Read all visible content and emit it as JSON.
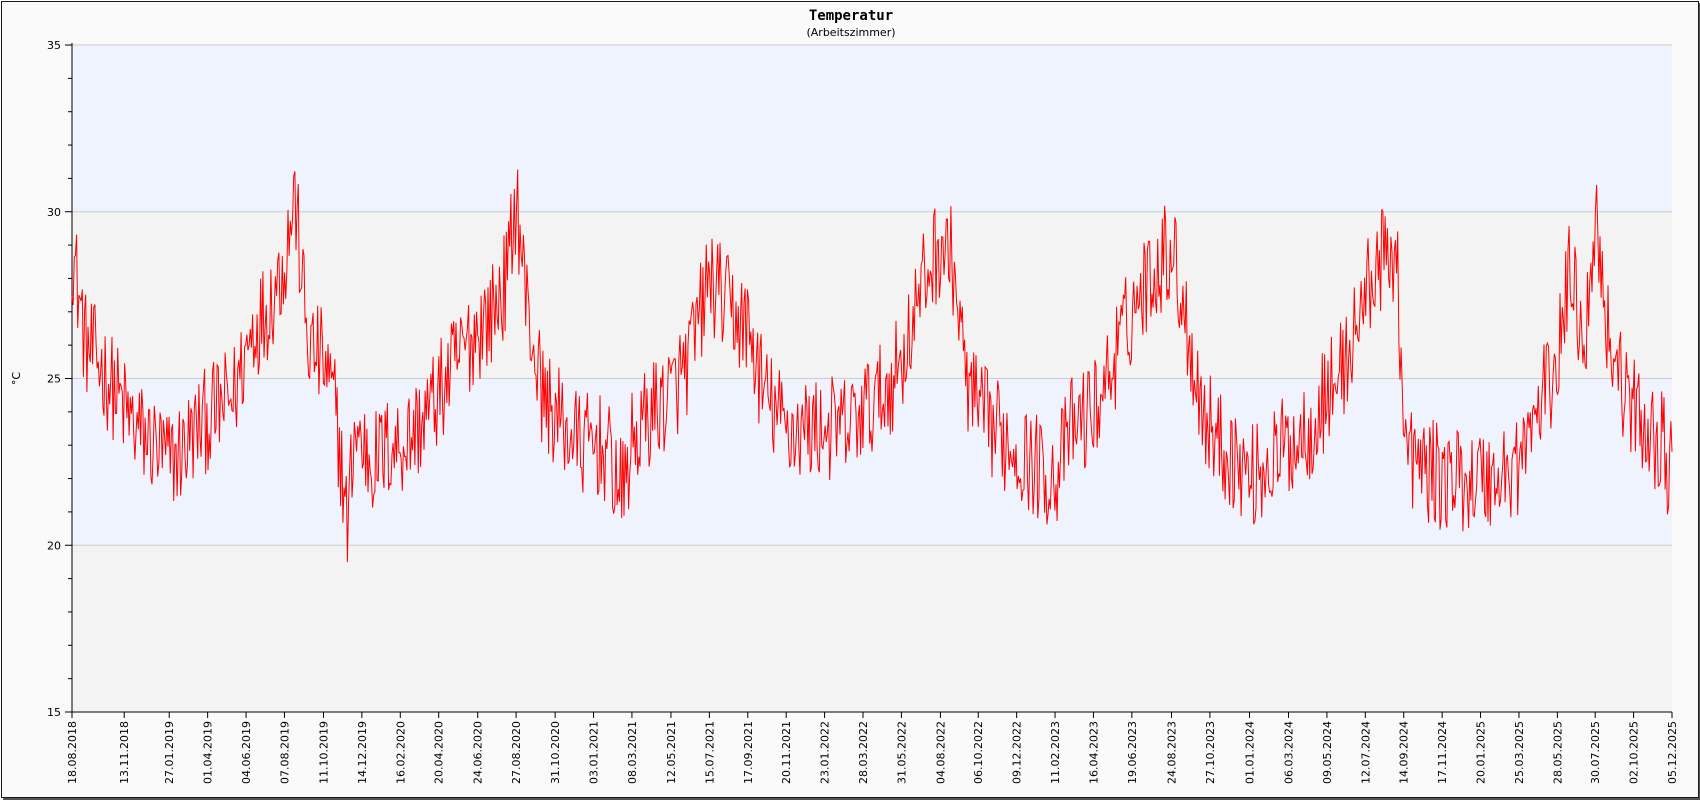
{
  "chart_data": {
    "type": "line",
    "title": "Temperatur",
    "subtitle": "(Arbeitszimmer)",
    "xlabel": "",
    "ylabel": "°C",
    "ylim": [
      15,
      35
    ],
    "y_ticks": [
      15,
      20,
      25,
      30,
      35
    ],
    "x_range": [
      "18.08.2018",
      "05.12.2025"
    ],
    "x_tick_labels": [
      "18.08.2018",
      "13.11.2018",
      "27.01.2019",
      "01.04.2019",
      "04.06.2019",
      "07.08.2019",
      "11.10.2019",
      "14.12.2019",
      "16.02.2020",
      "20.04.2020",
      "24.06.2020",
      "27.08.2020",
      "31.10.2020",
      "03.01.2021",
      "08.03.2021",
      "12.05.2021",
      "15.07.2021",
      "17.09.2021",
      "20.11.2021",
      "23.01.2022",
      "28.03.2022",
      "31.05.2022",
      "04.08.2022",
      "06.10.2022",
      "09.12.2022",
      "11.02.2023",
      "16.04.2023",
      "19.06.2023",
      "24.08.2023",
      "27.10.2023",
      "01.01.2024",
      "06.03.2024",
      "09.05.2024",
      "12.07.2024",
      "14.09.2024",
      "17.11.2024",
      "20.01.2025",
      "25.03.2025",
      "28.05.2025",
      "30.07.2025",
      "02.10.2025",
      "05.12.2025"
    ],
    "grid": true,
    "background_bands": [
      {
        "from": 30,
        "to": 35,
        "color": "#eff3fe"
      },
      {
        "from": 25,
        "to": 30,
        "color": "#f3f3f3"
      },
      {
        "from": 20,
        "to": 25,
        "color": "#eff3fe"
      },
      {
        "from": 15,
        "to": 20,
        "color": "#f3f3f3"
      }
    ],
    "series": [
      {
        "color": "#ff0000",
        "x": [
          "18.08.2018",
          "10.09.2018",
          "01.10.2018",
          "01.11.2018",
          "01.12.2018",
          "01.01.2019",
          "27.01.2019",
          "15.02.2019",
          "15.03.2019",
          "15.04.2019",
          "15.05.2019",
          "15.06.2019",
          "07.07.2019",
          "07.08.2019",
          "24.08.2019",
          "15.09.2019",
          "11.10.2019",
          "01.11.2019",
          "20.11.2019",
          "01.12.2019",
          "14.12.2019",
          "01.01.2020",
          "01.02.2020",
          "16.02.2020",
          "15.03.2020",
          "20.04.2020",
          "20.05.2020",
          "24.06.2020",
          "20.07.2020",
          "12.08.2020",
          "27.08.2020",
          "15.09.2020",
          "10.10.2020",
          "15.11.2020",
          "15.12.2020",
          "15.01.2021",
          "01.02.2021",
          "20.02.2021",
          "08.03.2021",
          "10.04.2021",
          "12.05.2021",
          "10.06.2021",
          "01.07.2021",
          "15.07.2021",
          "20.08.2021",
          "17.09.2021",
          "15.10.2021",
          "20.11.2021",
          "15.12.2021",
          "23.01.2022",
          "28.02.2022",
          "28.03.2022",
          "01.05.2022",
          "31.05.2022",
          "01.07.2022",
          "20.07.2022",
          "04.08.2022",
          "25.08.2022",
          "15.09.2022",
          "06.10.2022",
          "01.11.2022",
          "01.12.2022",
          "01.01.2023",
          "11.02.2023",
          "10.03.2023",
          "16.04.2023",
          "20.05.2023",
          "19.06.2023",
          "15.07.2023",
          "24.08.2023",
          "15.09.2023",
          "15.10.2023",
          "15.11.2023",
          "15.12.2023",
          "01.01.2024",
          "06.02.2024",
          "06.03.2024",
          "10.04.2024",
          "09.05.2024",
          "10.06.2024",
          "12.07.2024",
          "01.08.2024",
          "20.08.2024",
          "03.09.2024",
          "14.09.2024",
          "01.10.2024",
          "17.11.2024",
          "15.12.2024",
          "20.01.2025",
          "20.02.2025",
          "25.03.2025",
          "25.04.2025",
          "28.05.2025",
          "20.06.2025",
          "01.07.2025",
          "15.07.2025",
          "30.07.2025",
          "20.08.2025",
          "10.09.2025",
          "02.10.2025",
          "25.10.2025",
          "20.11.2025",
          "05.12.2025"
        ],
        "y": [
          29.0,
          26.0,
          25.5,
          24.5,
          23.5,
          23.0,
          22.5,
          22.8,
          23.5,
          24.0,
          24.5,
          26.5,
          27.0,
          28.5,
          30.5,
          26.0,
          25.5,
          24.0,
          20.5,
          23.5,
          23.0,
          22.5,
          23.0,
          23.0,
          23.5,
          24.5,
          25.5,
          26.5,
          27.0,
          28.0,
          30.5,
          27.0,
          24.5,
          23.5,
          23.0,
          23.0,
          22.5,
          21.5,
          23.0,
          24.0,
          24.5,
          25.5,
          27.0,
          28.0,
          27.0,
          26.5,
          24.5,
          23.5,
          23.5,
          23.5,
          23.5,
          24.0,
          24.5,
          25.5,
          27.5,
          28.5,
          29.0,
          28.5,
          25.0,
          24.0,
          23.5,
          23.0,
          22.5,
          22.0,
          23.5,
          24.0,
          25.5,
          27.0,
          28.0,
          29.0,
          27.0,
          24.0,
          23.0,
          22.5,
          22.0,
          22.5,
          23.0,
          23.5,
          24.5,
          25.5,
          27.5,
          28.5,
          28.5,
          29.0,
          23.0,
          22.5,
          22.0,
          22.0,
          22.0,
          22.0,
          22.5,
          24.0,
          25.5,
          28.5,
          27.0,
          26.5,
          30.0,
          26.5,
          25.0,
          24.0,
          23.5,
          23.0,
          22.0
        ]
      }
    ]
  }
}
